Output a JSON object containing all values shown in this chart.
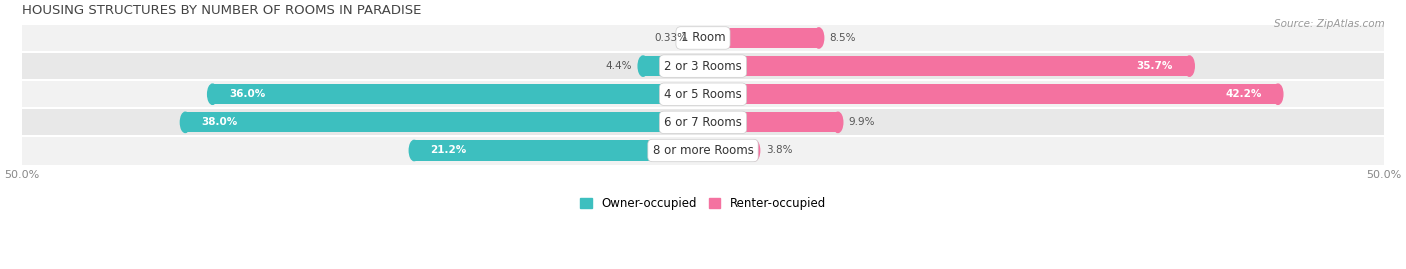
{
  "title": "HOUSING STRUCTURES BY NUMBER OF ROOMS IN PARADISE",
  "source": "Source: ZipAtlas.com",
  "categories": [
    "1 Room",
    "2 or 3 Rooms",
    "4 or 5 Rooms",
    "6 or 7 Rooms",
    "8 or more Rooms"
  ],
  "owner_values": [
    0.33,
    4.4,
    36.0,
    38.0,
    21.2
  ],
  "renter_values": [
    8.5,
    35.7,
    42.2,
    9.9,
    3.8
  ],
  "owner_color": "#3DBFBF",
  "renter_color": "#F472A0",
  "row_bg_color_odd": "#F2F2F2",
  "row_bg_color_even": "#E8E8E8",
  "xlim": [
    -50,
    50
  ],
  "label_fontsize": 8.5,
  "title_fontsize": 9.5,
  "bar_height": 0.72,
  "legend_labels": [
    "Owner-occupied",
    "Renter-occupied"
  ],
  "owner_label_inside_threshold": 5,
  "renter_label_inside_threshold": 12
}
